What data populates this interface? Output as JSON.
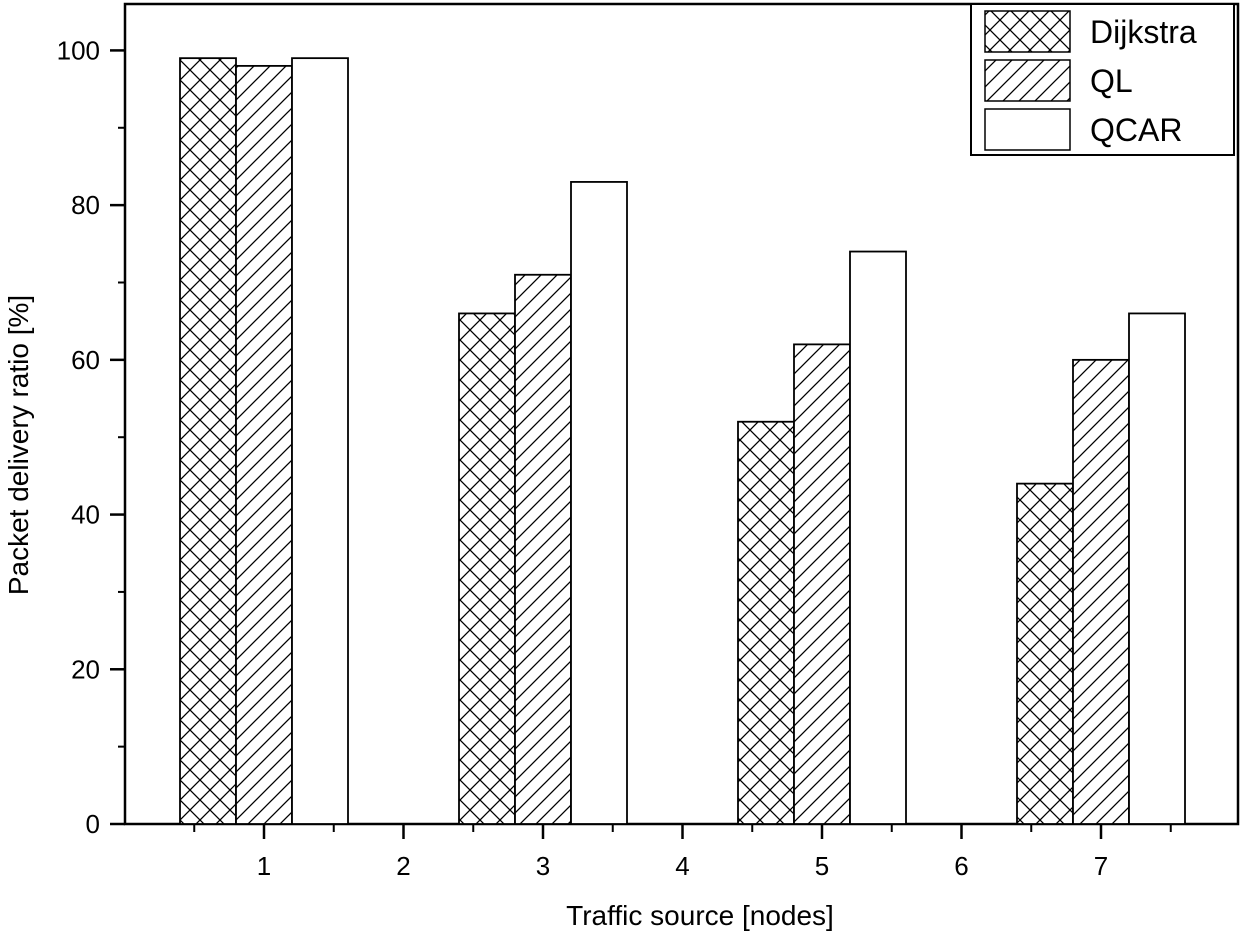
{
  "chart_data": {
    "type": "bar",
    "title": "",
    "xlabel": "Traffic source [nodes]",
    "ylabel": "Packet delivery ratio [%]",
    "x_ticks": [
      "1",
      "2",
      "3",
      "4",
      "5",
      "6",
      "7"
    ],
    "categories": [
      "1",
      "3",
      "5",
      "7"
    ],
    "ylim": [
      0,
      106
    ],
    "y_ticks": [
      0,
      20,
      40,
      60,
      80,
      100
    ],
    "grid": false,
    "legend_position": "top-right",
    "series": [
      {
        "name": "Dijkstra",
        "pattern": "crosshatch",
        "values": [
          99,
          66,
          52,
          44
        ]
      },
      {
        "name": "QL",
        "pattern": "diagonal-hatch",
        "values": [
          98,
          71,
          62,
          60
        ]
      },
      {
        "name": "QCAR",
        "pattern": "none",
        "values": [
          99,
          83,
          74,
          66
        ]
      }
    ],
    "colors": {
      "stroke": "#000000",
      "fill": "#ffffff"
    }
  }
}
